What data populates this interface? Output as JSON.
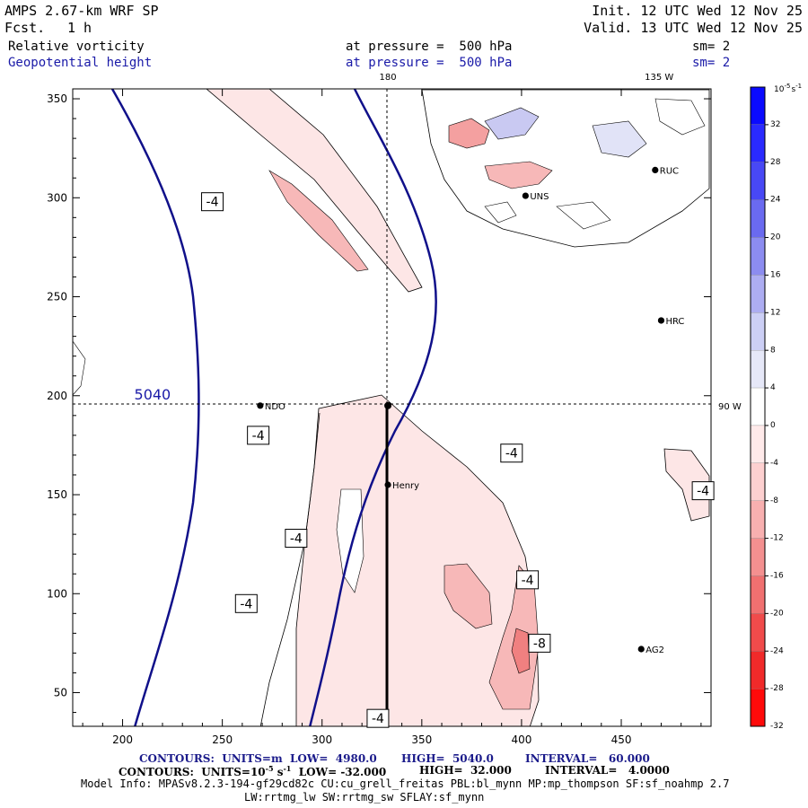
{
  "header": {
    "model": "AMPS 2.67-km WRF SP",
    "fcst_label": "Fcst.",
    "fcst_value": "1 h",
    "init": "Init. 12 UTC Wed 12 Nov 25",
    "valid": "Valid. 13 UTC Wed 12 Nov 25",
    "field1": "Relative vorticity",
    "field2": "Geopotential height",
    "press1": "at pressure =  500 hPa",
    "press2": "at pressure =  500 hPa",
    "sm1": "sm= 2",
    "sm2": "sm= 2"
  },
  "footer": {
    "contours1_a": "CONTOURS:  UNITS=m  LOW=  4980.0",
    "contours1_b": "HIGH=  5040.0",
    "contours1_c": "INTERVAL=   60.000",
    "contours2_a": "CONTOURS:  UNITS=10",
    "contours2_exp": "-5",
    "contours2_s": " s",
    "contours2_exp2": "-1",
    "contours2_b": "  LOW= -32.000",
    "contours2_c": "HIGH=  32.000",
    "contours2_d": "INTERVAL=   4.0000",
    "model_info": "Model Info: MPASv8.2.3-194-gf29cd82c CU:cu_grell_freitas PBL:bl_mynn MP:mp_thompson SF:sf_noahmp 2.7",
    "model_info2": "LW:rrtmg_lw SW:rrtmg_sw SFLAY:sf_mynn"
  },
  "chart_data": {
    "type": "contour_map",
    "xlim": [
      175,
      495
    ],
    "ylim": [
      33,
      355
    ],
    "xticks": [
      200,
      250,
      300,
      350,
      400,
      450
    ],
    "yticks": [
      50,
      100,
      150,
      200,
      250,
      300,
      350
    ],
    "meridian_labels": [
      {
        "text": "180",
        "x": 333,
        "y": 355
      },
      {
        "text": "135 W",
        "x": 469,
        "y": 355
      },
      {
        "text": "90 W",
        "x": 495,
        "y": 195
      }
    ],
    "crosshair": {
      "x": 333,
      "y": 195
    },
    "height_label": {
      "text": "5040",
      "x": 215,
      "y": 198
    },
    "stations": [
      {
        "name": "NDO",
        "x": 269,
        "y": 195
      },
      {
        "name": "Henry",
        "x": 333,
        "y": 155
      },
      {
        "name": "HRC",
        "x": 470,
        "y": 238
      },
      {
        "name": "AG2",
        "x": 460,
        "y": 72
      },
      {
        "name": "RUC",
        "x": 467,
        "y": 314
      },
      {
        "name": "UNS",
        "x": 402,
        "y": 301
      }
    ],
    "contour_labels": [
      {
        "text": "-4",
        "x": 245,
        "y": 298
      },
      {
        "text": "-4",
        "x": 268,
        "y": 180
      },
      {
        "text": "-4",
        "x": 395,
        "y": 171
      },
      {
        "text": "-4",
        "x": 287,
        "y": 128
      },
      {
        "text": "-4",
        "x": 403,
        "y": 107
      },
      {
        "text": "-4",
        "x": 262,
        "y": 95
      },
      {
        "text": "-8",
        "x": 409,
        "y": 75
      },
      {
        "text": "-4",
        "x": 328,
        "y": 37
      },
      {
        "text": "-4",
        "x": 491,
        "y": 152
      }
    ],
    "colorbar": {
      "unit_base": "10",
      "unit_exp": "-5",
      "unit_s": "s",
      "unit_exp2": "-1",
      "labels": [
        "32",
        "28",
        "24",
        "20",
        "16",
        "12",
        "8",
        "4",
        "0",
        "-4",
        "-8",
        "-12",
        "-16",
        "-20",
        "-24",
        "-28",
        "-32"
      ],
      "colors": [
        "#0a0aff",
        "#2a2aff",
        "#4848f5",
        "#6a6af0",
        "#8c8cf0",
        "#adadf2",
        "#cccff5",
        "#e6e8f8",
        "#ffffff",
        "#ffeaea",
        "#fdd0d0",
        "#f8b0b0",
        "#f49090",
        "#f07070",
        "#f04b4b",
        "#f02a2a",
        "#ff0a0a"
      ]
    }
  }
}
